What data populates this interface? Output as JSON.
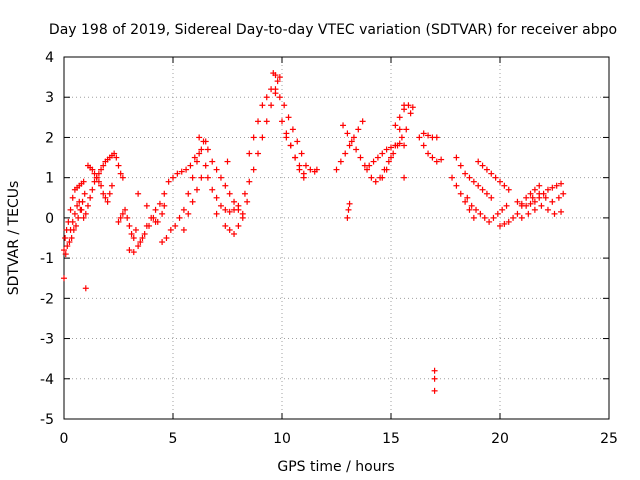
{
  "chart_data": {
    "type": "scatter",
    "title": "Day 198 of 2019, Sidereal Day-to-day VTEC variation (SDTVAR) for receiver abpo",
    "xlabel": "GPS time / hours",
    "ylabel": "SDTVAR / TECUs",
    "xlim": [
      0,
      25
    ],
    "ylim": [
      -5,
      4
    ],
    "xticks": [
      0,
      5,
      10,
      15,
      20,
      25
    ],
    "yticks": [
      -5,
      -4,
      -3,
      -2,
      -1,
      0,
      1,
      2,
      3,
      4
    ],
    "grid": true,
    "marker": "plus",
    "marker_color": "#ff0000",
    "series": [
      {
        "name": "SDTVAR",
        "x": [
          0.0,
          0.08,
          0.15,
          0.25,
          0.35,
          0.45,
          0.55,
          0.65,
          0.75,
          0.85,
          0.95,
          0.05,
          0.12,
          0.2,
          0.3,
          0.4,
          0.5,
          0.6,
          0.7,
          0.8,
          0.9,
          0.3,
          0.4,
          0.5,
          0.6,
          0.7,
          0.8,
          0.9,
          1.0,
          1.1,
          1.2,
          1.3,
          1.4,
          1.5,
          1.6,
          1.7,
          1.8,
          1.9,
          2.0,
          2.1,
          2.2,
          2.3,
          2.4,
          2.5,
          2.6,
          2.7,
          1.1,
          1.2,
          1.3,
          1.4,
          1.5,
          1.6,
          1.7,
          1.8,
          1.9,
          2.0,
          2.1,
          2.2,
          1.0,
          0.0,
          2.5,
          2.6,
          2.7,
          2.8,
          2.9,
          3.0,
          3.1,
          3.2,
          3.3,
          3.0,
          3.2,
          3.4,
          3.6,
          3.8,
          4.0,
          4.2,
          4.4,
          4.6,
          3.5,
          3.7,
          3.9,
          4.1,
          4.3,
          4.5,
          3.4,
          3.8,
          4.2,
          4.5,
          4.7,
          4.9,
          5.1,
          5.3,
          5.5,
          5.7,
          5.9,
          6.1,
          6.3,
          6.5,
          4.6,
          4.8,
          5.0,
          5.2,
          5.4,
          5.6,
          5.8,
          6.0,
          6.2,
          5.5,
          5.7,
          5.9,
          6.1,
          6.3,
          6.5,
          6.2,
          6.4,
          6.6,
          6.8,
          7.0,
          7.2,
          7.4,
          7.6,
          7.8,
          8.0,
          8.2,
          6.6,
          6.8,
          7.0,
          7.2,
          7.4,
          7.6,
          7.8,
          8.0,
          7.4,
          7.6,
          7.8,
          8.0,
          8.2,
          8.4,
          7.5,
          7.0,
          8.3,
          8.5,
          8.7,
          8.9,
          9.1,
          9.3,
          9.5,
          9.7,
          9.9,
          8.5,
          8.7,
          8.9,
          9.1,
          9.3,
          9.5,
          9.7,
          9.6,
          9.7,
          9.8,
          9.9,
          10.1,
          10.3,
          10.5,
          10.7,
          10.9,
          11.1,
          11.3,
          10.0,
          10.2,
          10.4,
          10.6,
          10.8,
          11.0,
          10.2,
          10.4,
          10.6,
          10.8,
          11.0,
          11.5,
          11.6,
          12.5,
          12.7,
          12.9,
          13.1,
          13.3,
          13.5,
          13.7,
          12.8,
          13.0,
          13.2,
          13.4,
          13.6,
          13.8,
          13.9,
          14.1,
          14.3,
          14.5,
          14.7,
          14.9,
          15.1,
          15.3,
          15.5,
          15.7,
          15.9,
          14.0,
          14.2,
          14.4,
          14.6,
          14.8,
          15.0,
          15.2,
          15.4,
          15.6,
          13.0,
          13.05,
          13.1,
          14.6,
          14.8,
          15.0,
          15.2,
          15.4,
          15.6,
          15.2,
          15.4,
          15.6,
          15.8,
          15.6,
          16.0,
          16.3,
          16.5,
          16.7,
          16.9,
          17.1,
          17.3,
          16.5,
          16.7,
          16.9,
          17.1,
          17.0,
          17.0,
          17.0,
          17.8,
          18.0,
          18.2,
          18.4,
          18.6,
          18.8,
          18.0,
          18.2,
          18.4,
          18.6,
          18.8,
          19.0,
          19.2,
          19.4,
          19.6,
          18.5,
          18.7,
          18.9,
          19.1,
          19.3,
          19.5,
          19.7,
          19.9,
          20.1,
          20.3,
          19.0,
          19.2,
          19.4,
          19.6,
          19.8,
          20.0,
          20.2,
          20.4,
          20.0,
          20.2,
          20.4,
          20.6,
          20.8,
          21.0,
          21.2,
          21.4,
          21.6,
          21.8,
          20.8,
          21.0,
          21.2,
          21.4,
          21.6,
          21.8,
          22.0,
          22.2,
          22.4,
          22.6,
          22.8,
          21.0,
          21.3,
          21.6,
          21.9,
          22.2,
          22.5,
          22.8,
          21.5,
          21.8,
          22.1,
          22.4,
          22.7,
          22.9
        ],
        "y": [
          -0.8,
          -0.9,
          -0.7,
          -0.6,
          -0.5,
          -0.3,
          -0.2,
          0.0,
          0.2,
          0.4,
          0.6,
          -0.5,
          -0.3,
          -0.1,
          0.2,
          0.5,
          0.7,
          0.75,
          0.8,
          0.85,
          0.9,
          -0.3,
          -0.1,
          0.1,
          0.3,
          0.4,
          0.2,
          0.0,
          0.1,
          0.3,
          0.5,
          0.7,
          0.9,
          1.0,
          1.1,
          1.2,
          1.3,
          1.4,
          1.45,
          1.5,
          1.55,
          1.6,
          1.5,
          1.3,
          1.1,
          1.0,
          1.3,
          1.25,
          1.2,
          1.1,
          1.0,
          0.9,
          0.8,
          0.6,
          0.5,
          0.4,
          0.6,
          0.8,
          -1.75,
          -1.5,
          -0.1,
          0.0,
          0.1,
          0.2,
          0.0,
          -0.2,
          -0.4,
          -0.5,
          -0.3,
          -0.8,
          -0.85,
          -0.7,
          -0.5,
          -0.2,
          0.0,
          0.2,
          0.35,
          0.3,
          -0.6,
          -0.4,
          -0.2,
          0.0,
          -0.1,
          0.1,
          0.6,
          0.3,
          -0.1,
          -0.6,
          -0.5,
          -0.3,
          -0.2,
          0.0,
          0.2,
          0.6,
          1.0,
          1.4,
          1.7,
          1.9,
          0.6,
          0.9,
          1.0,
          1.1,
          1.15,
          1.2,
          1.3,
          1.5,
          1.6,
          -0.3,
          0.1,
          0.4,
          0.7,
          1.0,
          1.3,
          2.0,
          1.9,
          1.7,
          1.4,
          1.2,
          1.0,
          0.8,
          0.6,
          0.4,
          0.2,
          0.0,
          1.0,
          0.7,
          0.5,
          0.3,
          0.2,
          0.15,
          0.2,
          0.3,
          -0.2,
          -0.3,
          -0.4,
          -0.2,
          0.1,
          0.4,
          1.4,
          0.1,
          0.6,
          0.9,
          1.2,
          1.6,
          2.0,
          2.4,
          2.8,
          3.2,
          3.5,
          1.6,
          2.0,
          2.4,
          2.8,
          3.0,
          3.2,
          3.1,
          3.6,
          3.55,
          3.4,
          3.0,
          2.8,
          2.5,
          2.2,
          1.9,
          1.6,
          1.3,
          1.2,
          2.4,
          2.1,
          1.8,
          1.5,
          1.3,
          1.1,
          2.0,
          1.8,
          1.5,
          1.2,
          1.0,
          1.15,
          1.2,
          1.2,
          1.4,
          1.6,
          1.8,
          2.0,
          2.2,
          2.4,
          2.3,
          2.1,
          1.9,
          1.7,
          1.5,
          1.3,
          1.2,
          1.0,
          0.9,
          1.0,
          1.2,
          1.4,
          1.6,
          1.8,
          2.0,
          2.2,
          2.6,
          1.3,
          1.4,
          1.5,
          1.6,
          1.7,
          1.75,
          1.8,
          1.85,
          1.8,
          0.0,
          0.2,
          0.35,
          1.0,
          1.2,
          1.5,
          1.8,
          2.2,
          2.8,
          2.3,
          2.5,
          2.7,
          2.8,
          1.0,
          2.75,
          2.0,
          1.8,
          1.6,
          1.5,
          1.4,
          1.45,
          2.1,
          2.05,
          2.0,
          2.0,
          -3.8,
          -4.0,
          -4.3,
          1.0,
          0.8,
          0.6,
          0.4,
          0.2,
          0.0,
          1.5,
          1.3,
          1.1,
          1.0,
          0.9,
          0.8,
          0.7,
          0.6,
          0.5,
          0.5,
          0.3,
          0.2,
          0.1,
          0.0,
          -0.1,
          0.0,
          0.1,
          0.2,
          0.3,
          1.4,
          1.3,
          1.2,
          1.1,
          1.0,
          0.9,
          0.8,
          0.7,
          -0.2,
          -0.15,
          -0.1,
          0.0,
          0.1,
          0.3,
          0.5,
          0.6,
          0.7,
          0.8,
          0.4,
          0.35,
          0.3,
          0.35,
          0.4,
          0.5,
          0.6,
          0.7,
          0.75,
          0.8,
          0.85,
          0.0,
          0.1,
          0.2,
          0.3,
          0.2,
          0.1,
          0.15,
          0.5,
          0.6,
          0.5,
          0.4,
          0.5,
          0.6
        ]
      }
    ]
  }
}
